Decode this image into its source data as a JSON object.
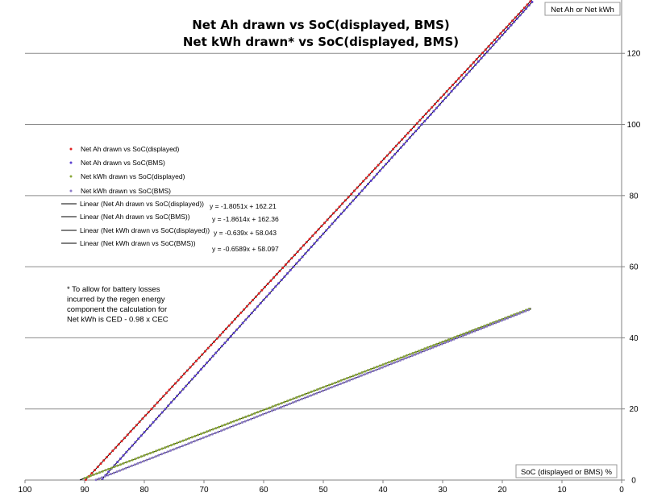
{
  "chart_data": {
    "type": "scatter",
    "title": [
      "Net Ah drawn vs SoC(displayed, BMS)",
      "Net kWh drawn* vs SoC(displayed, BMS)"
    ],
    "xlabel": "SoC (displayed or BMS) %",
    "ylabel": "Net Ah or Net kWh",
    "xlim": [
      100,
      0
    ],
    "ylim": [
      0,
      135
    ],
    "x_reversed": true,
    "y_axis_side": "right",
    "x_ticks": [
      100,
      90,
      80,
      70,
      60,
      50,
      40,
      30,
      20,
      10,
      0
    ],
    "y_ticks": [
      0,
      20,
      40,
      60,
      80,
      100,
      120
    ],
    "grid": "horizontal",
    "legend_placement": "left-middle",
    "series": [
      {
        "name": "Net Ah drawn vs SoC(displayed)",
        "kind": "points",
        "color": "#e02020",
        "x_range": [
          89.8,
          15
        ],
        "slope": -1.8051,
        "intercept": 162.21
      },
      {
        "name": "Net Ah drawn vs SoC(BMS)",
        "kind": "points",
        "color": "#5b3fd0",
        "x_range": [
          87,
          15
        ],
        "slope": -1.8614,
        "intercept": 162.36
      },
      {
        "name": "Net kWh drawn vs SoC(displayed)",
        "kind": "points",
        "color": "#8aa838",
        "x_range": [
          90,
          15.5
        ],
        "slope": -0.639,
        "intercept": 58.043
      },
      {
        "name": "Net kWh drawn vs SoC(BMS)",
        "kind": "points",
        "color": "#8a78c8",
        "x_range": [
          88.1,
          15.5
        ],
        "slope": -0.6589,
        "intercept": 58.097
      },
      {
        "name": "Linear (Net Ah drawn vs SoC(displayed))",
        "kind": "trend",
        "color": "#000000",
        "equation": "y = -1.8051x + 162.21",
        "x_range": [
          89.9,
          15
        ],
        "slope": -1.8051,
        "intercept": 162.21
      },
      {
        "name": "Linear (Net Ah drawn vs SoC(BMS))",
        "kind": "trend",
        "color": "#000000",
        "equation": "y = -1.8614x + 162.36",
        "x_range": [
          87.2,
          15
        ],
        "slope": -1.8614,
        "intercept": 162.36
      },
      {
        "name": "Linear (Net kWh drawn vs SoC(displayed))",
        "kind": "trend",
        "color": "#000000",
        "equation": "y = -0.639x + 58.043",
        "x_range": [
          90.8,
          15.2
        ],
        "slope": -0.639,
        "intercept": 58.043
      },
      {
        "name": "Linear (Net kWh drawn vs SoC(BMS))",
        "kind": "trend",
        "color": "#000000",
        "equation": "y = -0.6589x + 58.097",
        "x_range": [
          88.2,
          15.2
        ],
        "slope": -0.6589,
        "intercept": 58.097
      }
    ],
    "annotation": [
      "* To allow for battery losses",
      "incurred by the regen energy",
      "component the calculation for",
      "Net kWh is CED - 0.98 x CEC"
    ]
  }
}
